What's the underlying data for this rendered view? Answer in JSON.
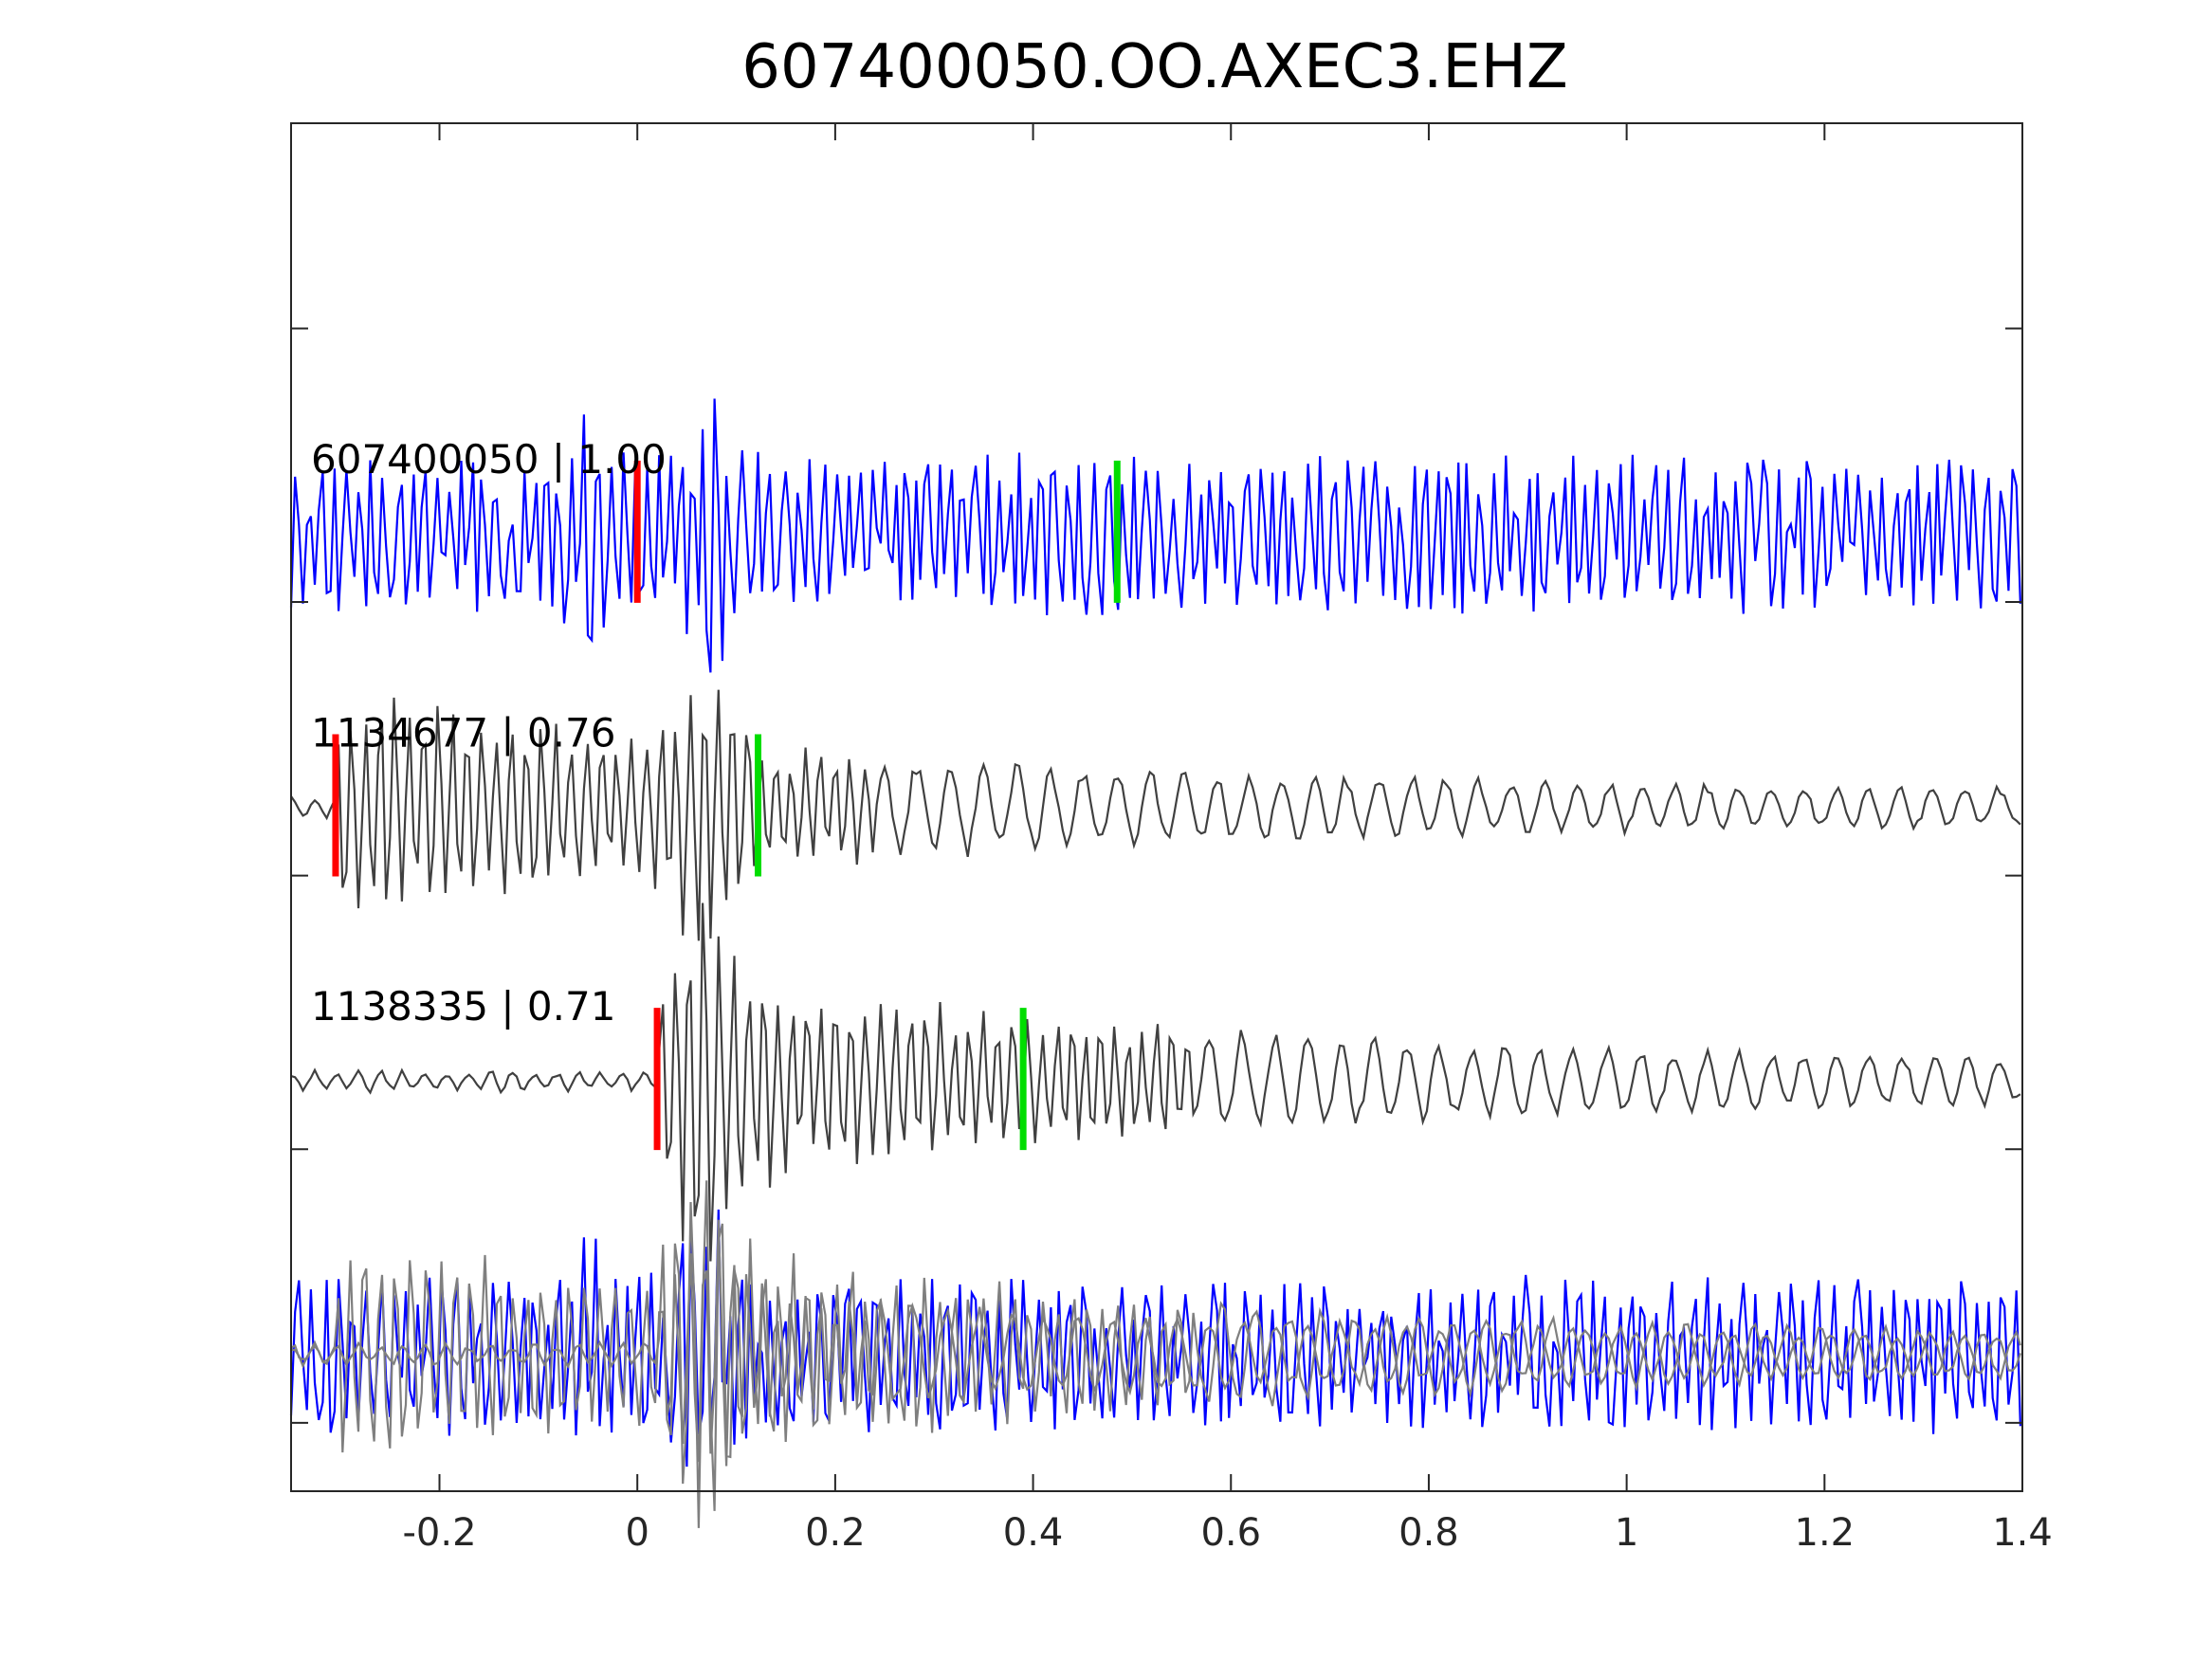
{
  "chart_data": {
    "type": "line",
    "title": "607400050.OO.AXEC3.EHZ",
    "xlabel": "",
    "ylabel": "",
    "xlim": [
      -0.35,
      1.4
    ],
    "ylim": [
      -4.5,
      0.5
    ],
    "x_ticks": [
      -0.2,
      0,
      0.2,
      0.4,
      0.6,
      0.8,
      1,
      1.2,
      1.4
    ],
    "x_tick_labels": [
      "-0.2",
      "0",
      "0.2",
      "0.4",
      "0.6",
      "0.8",
      "1",
      "1.2",
      "1.4"
    ],
    "y_ticks": [
      -4.25,
      -3.25,
      -2.25,
      -1.25,
      -0.25
    ],
    "grid": false,
    "legend": "none",
    "series": [
      {
        "label": "607400050 | 1.00",
        "color": "#0000ff",
        "offset": -1,
        "onset": -0.45,
        "style": "noisy",
        "pick_p": 0.0,
        "pick_s": 0.485
      },
      {
        "label": "1134677 | 0.76",
        "color": "#404040",
        "offset": -2,
        "onset": -0.305,
        "style": "decay",
        "pick_p": -0.305,
        "pick_s": 0.122
      },
      {
        "label": "1138335 | 0.71",
        "color": "#404040",
        "offset": -3,
        "onset": 0.02,
        "style": "decay",
        "pick_p": 0.02,
        "pick_s": 0.39
      },
      {
        "label": "",
        "color": "#0000ff",
        "offset": -4,
        "onset": -0.45,
        "style": "overlay-noisy",
        "pick_p": null,
        "pick_s": null
      },
      {
        "label": "",
        "color": "#7f7f7f",
        "offset": -4,
        "onset": -0.305,
        "style": "overlay-decay",
        "pick_p": null,
        "pick_s": null
      },
      {
        "label": "",
        "color": "#7f7f7f",
        "offset": -4,
        "onset": 0.02,
        "style": "overlay-decay",
        "pick_p": null,
        "pick_s": null
      }
    ],
    "pick_colors": {
      "p": "#ff0000",
      "s": "#00dd00"
    }
  }
}
